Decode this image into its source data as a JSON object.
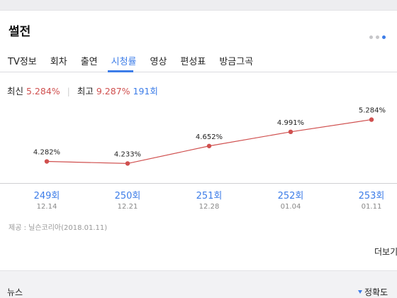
{
  "title": "썰전",
  "tabs": [
    "TV정보",
    "회차",
    "출연",
    "시청률",
    "영상",
    "편성표",
    "방금그곡"
  ],
  "active_tab": "시청률",
  "summary": {
    "latest_label": "최신",
    "latest_value": "5.284%",
    "best_label": "최고",
    "best_value": "9.287%",
    "best_episode": "191회"
  },
  "chart_data": {
    "type": "line",
    "categories": [
      "249회",
      "250회",
      "251회",
      "252회",
      "253회"
    ],
    "dates": [
      "12.14",
      "12.21",
      "12.28",
      "01.04",
      "01.11"
    ],
    "values": [
      4.282,
      4.233,
      4.652,
      4.991,
      5.284
    ],
    "labels": [
      "4.282%",
      "4.233%",
      "4.652%",
      "4.991%",
      "5.284%"
    ],
    "series_color": "#d0504f"
  },
  "source": "제공 : 닐슨코리아(2018.01.11)",
  "more_label": "더보기",
  "next_section": {
    "title": "뉴스",
    "sort_label": "정확도"
  },
  "colors": {
    "accent": "#3d7de8",
    "rating": "#d0504f"
  }
}
